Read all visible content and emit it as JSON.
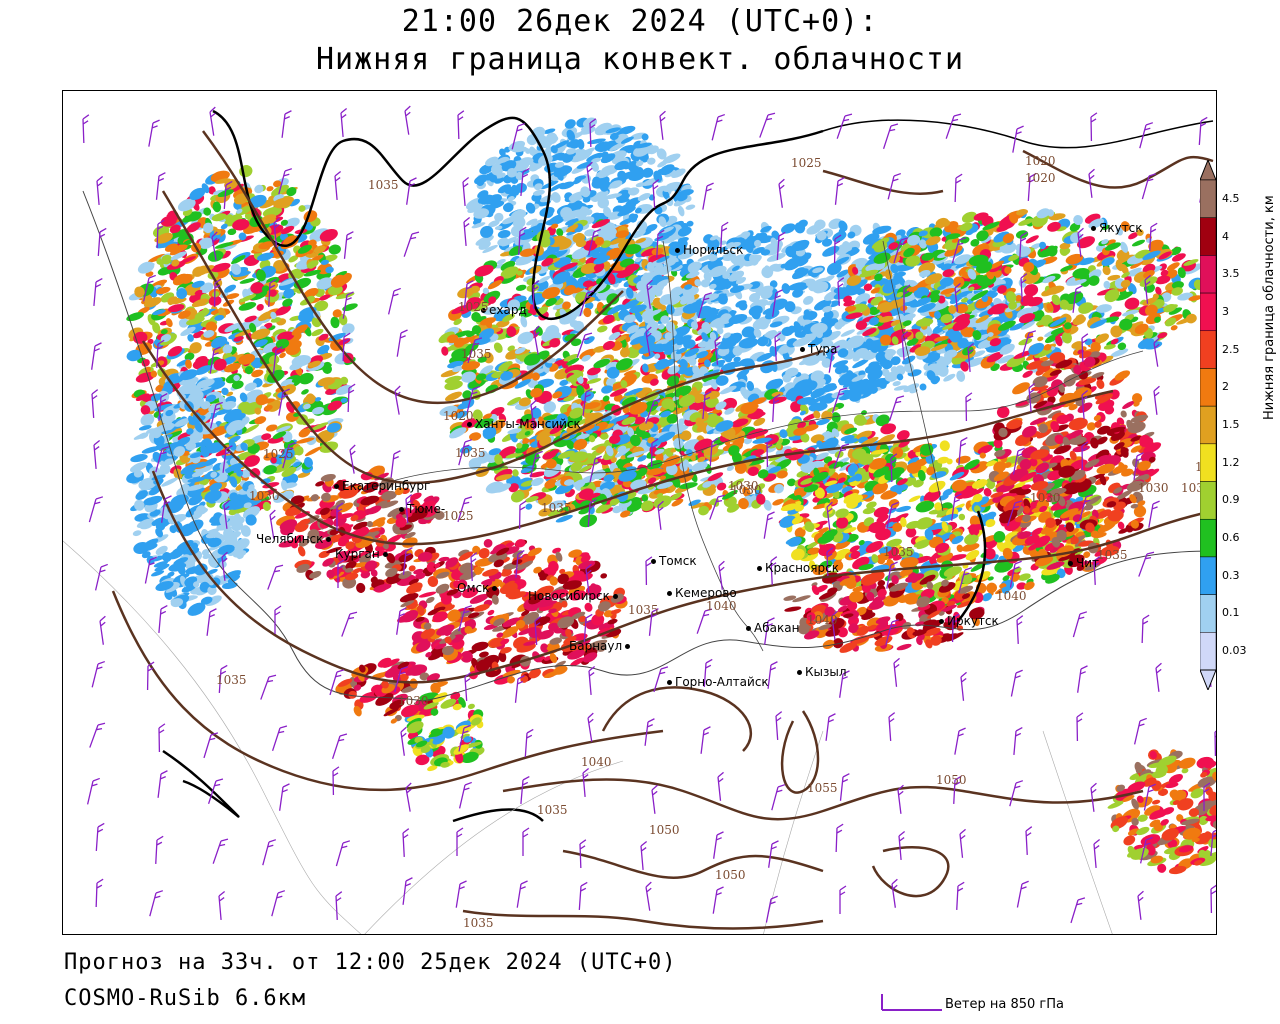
{
  "header": {
    "title_line1": "21:00 26дек 2024 (UTC+0):",
    "title_line2": "Нижняя граница конвект. облачности"
  },
  "footer": {
    "forecast": "Прогноз на 33ч. от 12:00 25дек 2024 (UTC+0)",
    "model": "COSMO-RuSib 6.6км",
    "wind_legend": "Ветер на 850 гПа"
  },
  "legend": {
    "title": "Нижняя граница облачности, км",
    "ticks": [
      "4.5",
      "4",
      "3.5",
      "3",
      "2.5",
      "2",
      "1.5",
      "1.2",
      "0.9",
      "0.6",
      "0.3",
      "0.1",
      "0.03"
    ],
    "colors": [
      "#9a7060",
      "#a00010",
      "#e0105a",
      "#f01050",
      "#f04020",
      "#f07a10",
      "#e0a020",
      "#f0e020",
      "#a0d030",
      "#20c020",
      "#30a0f0",
      "#a0d0f0",
      "#d0d8f8"
    ]
  },
  "colors": {
    "isobar": "#5a3320",
    "wind": "#8a20c8",
    "coast": "#000000",
    "border": "#444444"
  },
  "cities": [
    {
      "name": "Норильск"
    },
    {
      "name": "Якутск"
    },
    {
      "name": "Тура"
    },
    {
      "name": "ехард"
    },
    {
      "name": "Ханты-Мансийск"
    },
    {
      "name": "Екатеринбург"
    },
    {
      "name": "Тюме-"
    },
    {
      "name": "Челябинск"
    },
    {
      "name": "Курган"
    },
    {
      "name": "Омск"
    },
    {
      "name": "Новосибирск"
    },
    {
      "name": "Томск"
    },
    {
      "name": "Кемерово"
    },
    {
      "name": "Красноярск"
    },
    {
      "name": "Барнаул"
    },
    {
      "name": "Абакан"
    },
    {
      "name": "Горно-Алтайск"
    },
    {
      "name": "Кызыл"
    },
    {
      "name": "Иркутск"
    },
    {
      "name": "Чит"
    }
  ],
  "isobar_labels": [
    "1025",
    "1020",
    "1020",
    "1025",
    "1025",
    "1030",
    "1035",
    "1035",
    "1030",
    "1035",
    "1030",
    "1035",
    "1035",
    "1040",
    "1040",
    "1035",
    "1040",
    "1030",
    "1040",
    "1035",
    "1050",
    "1055",
    "1050",
    "1050",
    "1035",
    "1030",
    "1035",
    "1035",
    "1025",
    "1030",
    "1020",
    "1025",
    "1035"
  ]
}
